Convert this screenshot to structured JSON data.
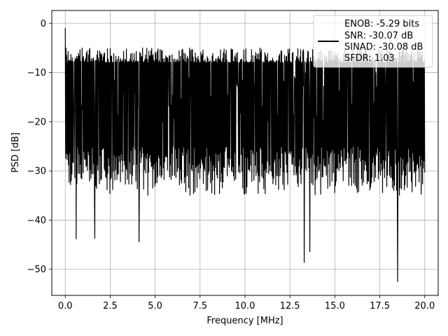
{
  "chart_data": {
    "type": "line",
    "title": "",
    "xlabel": "Frequency [MHz]",
    "ylabel": "PSD [dB]",
    "xlim": [
      -0.75,
      20.75
    ],
    "ylim": [
      -55.3,
      2.6
    ],
    "x_ticks": [
      0.0,
      2.5,
      5.0,
      7.5,
      10.0,
      12.5,
      15.0,
      17.5,
      20.0
    ],
    "x_tick_labels": [
      "0.0",
      "2.5",
      "5.0",
      "7.5",
      "10.0",
      "12.5",
      "15.0",
      "17.5",
      "20.0"
    ],
    "y_ticks": [
      0,
      -10,
      -20,
      -30,
      -40,
      -50
    ],
    "y_tick_labels": [
      "0",
      "−10",
      "−20",
      "−30",
      "−40",
      "−50"
    ],
    "grid": true,
    "legend_position": "top-right",
    "legend_entries": [
      "ENOB: -5.29 bits",
      "SNR: -30.07 dB",
      "SINAD: -30.08 dB",
      "SFDR: 1.03"
    ],
    "line_color": "#000000",
    "series": [
      {
        "x_start": 0.0,
        "x_end": 20.0,
        "points": 1024,
        "noise_floor_dB": -15,
        "upper_envelope_dB": [
          -5,
          -8
        ],
        "lower_envelope_dB": [
          -25,
          -35
        ],
        "peak_value_dB": -1,
        "minimum_value_dB": -52.5,
        "notable_dips": [
          {
            "x": 0.6,
            "y": -43.8
          },
          {
            "x": 1.65,
            "y": -43.7
          },
          {
            "x": 4.1,
            "y": -44.4
          },
          {
            "x": 13.3,
            "y": -48.6
          },
          {
            "x": 13.6,
            "y": -46.4
          },
          {
            "x": 18.5,
            "y": -52.5
          }
        ]
      }
    ]
  }
}
